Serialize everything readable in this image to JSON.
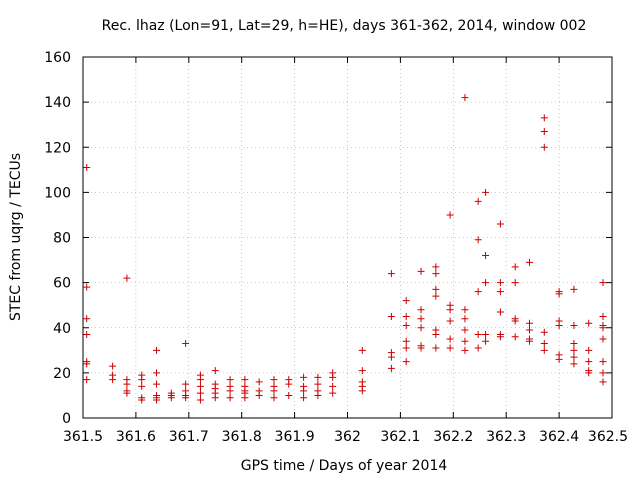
{
  "chart_data": {
    "type": "scatter",
    "title": "Rec. lhaz (Lon=91, Lat=29, h=HE), days 361-362, 2014, window 002",
    "xlabel": "GPS time / Days of year 2014",
    "ylabel": "STEC from uqrg / TECUs",
    "xlim": [
      361.5,
      362.5
    ],
    "ylim": [
      0,
      160
    ],
    "xticks": [
      361.5,
      361.6,
      361.7,
      361.8,
      361.9,
      362.0,
      362.1,
      362.2,
      362.3,
      362.4,
      362.5
    ],
    "xtick_labels": [
      "361.5",
      "361.6",
      "361.7",
      "361.8",
      "361.9",
      "362",
      "362.1",
      "362.2",
      "362.3",
      "362.4",
      "362.5"
    ],
    "yticks": [
      0,
      20,
      40,
      60,
      80,
      100,
      120,
      140,
      160
    ],
    "ytick_labels": [
      "0",
      "20",
      "40",
      "60",
      "80",
      "100",
      "120",
      "140",
      "160"
    ],
    "grid": true,
    "marker": "+",
    "color": "#cc0000",
    "points": [
      [
        361.507,
        111
      ],
      [
        361.507,
        58
      ],
      [
        361.507,
        44
      ],
      [
        361.507,
        37
      ],
      [
        361.507,
        25
      ],
      [
        361.507,
        24
      ],
      [
        361.507,
        17
      ],
      [
        361.556,
        23
      ],
      [
        361.556,
        19
      ],
      [
        361.556,
        17
      ],
      [
        361.583,
        62
      ],
      [
        361.583,
        17
      ],
      [
        361.583,
        15
      ],
      [
        361.583,
        12
      ],
      [
        361.583,
        11
      ],
      [
        361.611,
        19
      ],
      [
        361.611,
        17
      ],
      [
        361.611,
        14
      ],
      [
        361.611,
        9
      ],
      [
        361.611,
        8
      ],
      [
        361.639,
        30
      ],
      [
        361.639,
        20
      ],
      [
        361.639,
        15
      ],
      [
        361.639,
        10
      ],
      [
        361.639,
        9
      ],
      [
        361.639,
        8
      ],
      [
        361.667,
        11
      ],
      [
        361.667,
        10
      ],
      [
        361.667,
        9
      ],
      [
        361.694,
        33
      ],
      [
        361.694,
        15
      ],
      [
        361.694,
        12
      ],
      [
        361.694,
        10
      ],
      [
        361.694,
        9
      ],
      [
        361.722,
        19
      ],
      [
        361.722,
        17
      ],
      [
        361.722,
        14
      ],
      [
        361.722,
        11
      ],
      [
        361.722,
        8
      ],
      [
        361.75,
        21
      ],
      [
        361.75,
        15
      ],
      [
        361.75,
        13
      ],
      [
        361.75,
        11
      ],
      [
        361.75,
        9
      ],
      [
        361.778,
        17
      ],
      [
        361.778,
        14
      ],
      [
        361.778,
        12
      ],
      [
        361.778,
        9
      ],
      [
        361.806,
        17
      ],
      [
        361.806,
        14
      ],
      [
        361.806,
        12
      ],
      [
        361.806,
        11
      ],
      [
        361.806,
        9
      ],
      [
        361.833,
        16
      ],
      [
        361.833,
        12
      ],
      [
        361.833,
        10
      ],
      [
        361.861,
        17
      ],
      [
        361.861,
        14
      ],
      [
        361.861,
        12
      ],
      [
        361.861,
        9
      ],
      [
        361.889,
        17
      ],
      [
        361.889,
        15
      ],
      [
        361.889,
        10
      ],
      [
        361.917,
        18
      ],
      [
        361.917,
        14
      ],
      [
        361.917,
        12
      ],
      [
        361.917,
        9
      ],
      [
        361.944,
        18
      ],
      [
        361.944,
        15
      ],
      [
        361.944,
        12
      ],
      [
        361.944,
        10
      ],
      [
        361.972,
        20
      ],
      [
        361.972,
        18
      ],
      [
        361.972,
        14
      ],
      [
        361.972,
        11
      ],
      [
        362.028,
        30
      ],
      [
        362.028,
        21
      ],
      [
        362.028,
        16
      ],
      [
        362.028,
        14
      ],
      [
        362.028,
        12
      ],
      [
        362.083,
        64
      ],
      [
        362.083,
        45
      ],
      [
        362.083,
        29
      ],
      [
        362.083,
        27
      ],
      [
        362.083,
        22
      ],
      [
        362.111,
        52
      ],
      [
        362.111,
        45
      ],
      [
        362.111,
        41
      ],
      [
        362.111,
        34
      ],
      [
        362.111,
        31
      ],
      [
        362.111,
        25
      ],
      [
        362.139,
        65
      ],
      [
        362.139,
        48
      ],
      [
        362.139,
        44
      ],
      [
        362.139,
        40
      ],
      [
        362.139,
        32
      ],
      [
        362.139,
        31
      ],
      [
        362.167,
        67
      ],
      [
        362.167,
        64
      ],
      [
        362.167,
        57
      ],
      [
        362.167,
        54
      ],
      [
        362.167,
        39
      ],
      [
        362.167,
        37
      ],
      [
        362.167,
        31
      ],
      [
        362.194,
        90
      ],
      [
        362.194,
        50
      ],
      [
        362.194,
        48
      ],
      [
        362.194,
        43
      ],
      [
        362.194,
        35
      ],
      [
        362.194,
        31
      ],
      [
        362.222,
        142
      ],
      [
        362.222,
        48
      ],
      [
        362.222,
        44
      ],
      [
        362.222,
        39
      ],
      [
        362.222,
        34
      ],
      [
        362.222,
        30
      ],
      [
        362.247,
        96
      ],
      [
        362.247,
        79
      ],
      [
        362.247,
        56
      ],
      [
        362.247,
        37
      ],
      [
        362.247,
        31
      ],
      [
        362.261,
        100
      ],
      [
        362.261,
        72
      ],
      [
        362.261,
        60
      ],
      [
        362.261,
        37
      ],
      [
        362.261,
        34
      ],
      [
        362.289,
        86
      ],
      [
        362.289,
        60
      ],
      [
        362.289,
        56
      ],
      [
        362.289,
        47
      ],
      [
        362.289,
        37
      ],
      [
        362.289,
        36
      ],
      [
        362.317,
        67
      ],
      [
        362.317,
        60
      ],
      [
        362.317,
        44
      ],
      [
        362.317,
        43
      ],
      [
        362.317,
        36
      ],
      [
        362.344,
        69
      ],
      [
        362.344,
        42
      ],
      [
        362.344,
        39
      ],
      [
        362.344,
        35
      ],
      [
        362.344,
        34
      ],
      [
        362.372,
        133
      ],
      [
        362.372,
        127
      ],
      [
        362.372,
        120
      ],
      [
        362.372,
        38
      ],
      [
        362.372,
        33
      ],
      [
        362.372,
        30
      ],
      [
        362.4,
        56
      ],
      [
        362.4,
        55
      ],
      [
        362.4,
        43
      ],
      [
        362.4,
        41
      ],
      [
        362.4,
        28
      ],
      [
        362.4,
        26
      ],
      [
        362.428,
        57
      ],
      [
        362.428,
        41
      ],
      [
        362.428,
        33
      ],
      [
        362.428,
        30
      ],
      [
        362.428,
        27
      ],
      [
        362.428,
        24
      ],
      [
        362.456,
        42
      ],
      [
        362.456,
        30
      ],
      [
        362.456,
        25
      ],
      [
        362.456,
        21
      ],
      [
        362.456,
        20
      ],
      [
        362.483,
        60
      ],
      [
        362.483,
        45
      ],
      [
        362.483,
        41
      ],
      [
        362.483,
        40
      ],
      [
        362.483,
        35
      ],
      [
        362.483,
        25
      ],
      [
        362.483,
        20
      ],
      [
        362.483,
        16
      ]
    ]
  }
}
